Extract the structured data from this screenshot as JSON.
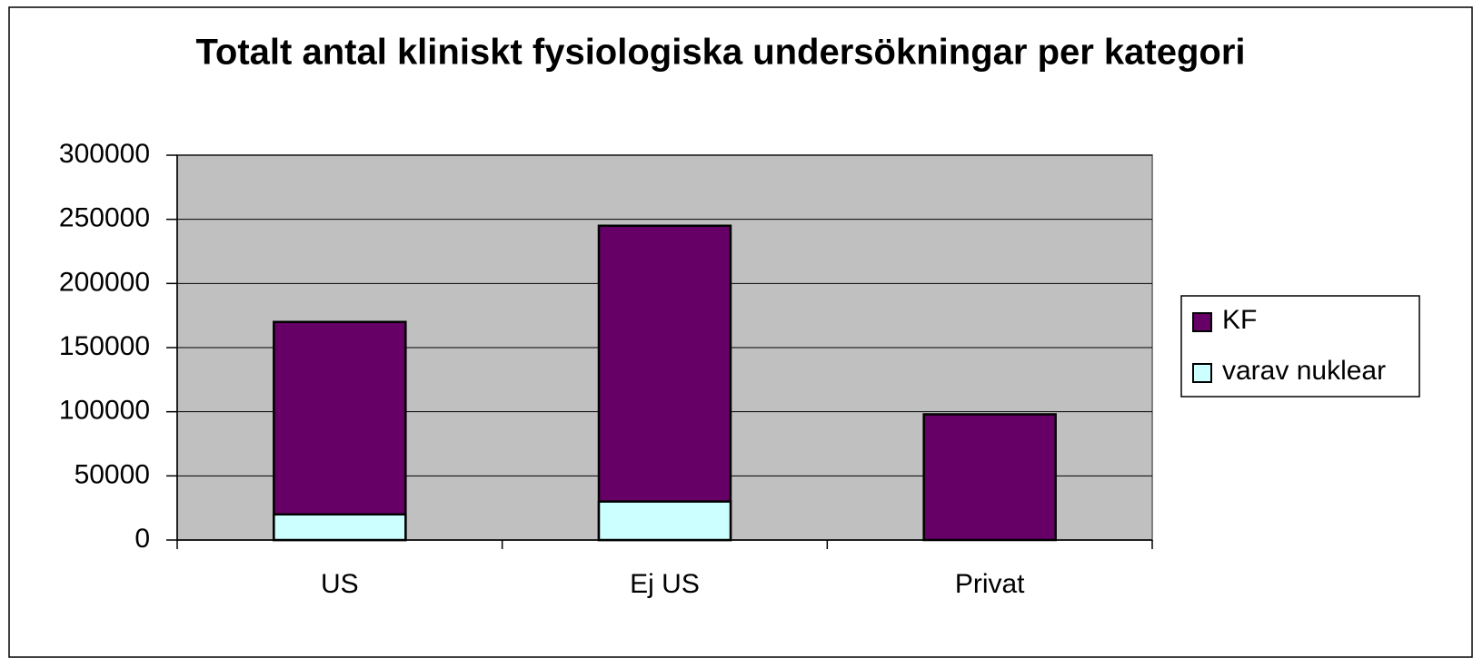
{
  "chart_data": {
    "type": "bar",
    "title": "Totalt antal kliniskt fysiologiska undersökningar per kategori",
    "categories": [
      "US",
      "Ej US",
      "Privat"
    ],
    "series": [
      {
        "name": "KF",
        "color": "#660066",
        "values": [
          170000,
          245000,
          98000
        ]
      },
      {
        "name": "varav nuklear",
        "color": "#ccffff",
        "values": [
          20000,
          30000,
          null
        ]
      }
    ],
    "ylim": [
      0,
      300000
    ],
    "yticks": [
      0,
      50000,
      100000,
      150000,
      200000,
      250000,
      300000
    ],
    "grid": true,
    "plot_background": "#c0c0c0",
    "legend": "right"
  }
}
